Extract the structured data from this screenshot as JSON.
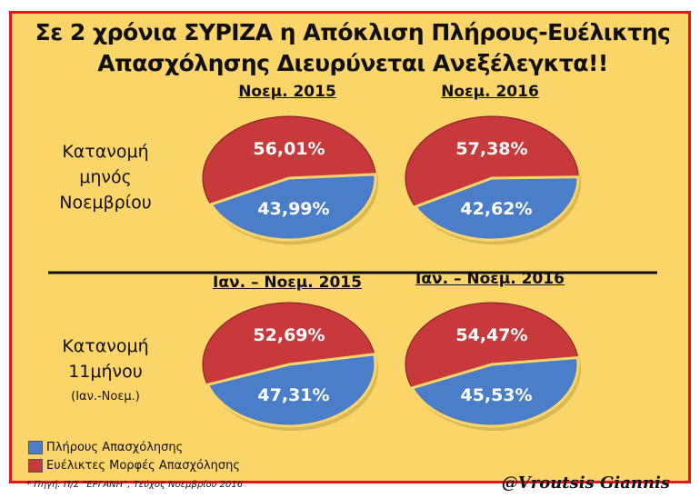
{
  "chart_data": {
    "type": "pie",
    "title": "Σε 2 χρόνια ΣΥΡΙΖΑ η Απόκλιση Πλήρους-Ευέλικτης Απασχόλησης Διευρύνεται Ανεξέλεγκτα!!",
    "title_line1": "Σε 2 χρόνια ΣΥΡΙΖΑ η Απόκλιση Πλήρους-Ευέλικτης",
    "title_line2": "Απασχόλησης Διευρύνεται Ανεξέλεγκτα!!",
    "legend": [
      {
        "label": "Πλήρους Απασχόλησης",
        "color": "#4a7ec8"
      },
      {
        "label": "Ευέλικτες Μορφές Απασχόλησης",
        "color": "#c8393b"
      }
    ],
    "row_labels": [
      {
        "line1": "Κατανομή",
        "line2": "μηνός",
        "line3": "Νοεμβρίου"
      },
      {
        "line1": "Κατανομή",
        "line2": "11μήνου",
        "line3": "(Ιαν.-Νοεμ.)"
      }
    ],
    "pies": [
      {
        "title": "Νοεμ. 2015",
        "full": 43.99,
        "flexible": 56.01,
        "full_label": "43,99%",
        "flexible_label": "56,01%"
      },
      {
        "title": "Νοεμ. 2016",
        "full": 42.62,
        "flexible": 57.38,
        "full_label": "42,62%",
        "flexible_label": "57,38%"
      },
      {
        "title": "Ιαν. – Νοεμ. 2015",
        "full": 47.31,
        "flexible": 52.69,
        "full_label": "47,31%",
        "flexible_label": "52,69%"
      },
      {
        "title": "Ιαν. – Νοεμ. 2016",
        "full": 45.53,
        "flexible": 54.47,
        "full_label": "45,53%",
        "flexible_label": "54,47%"
      }
    ],
    "source": "* Πηγή: Π/Σ “ΕΡΓΑΝΗ”, Τεύχος Νοεμβρίου 2016",
    "signature": "@Vroutsis Giannis"
  }
}
